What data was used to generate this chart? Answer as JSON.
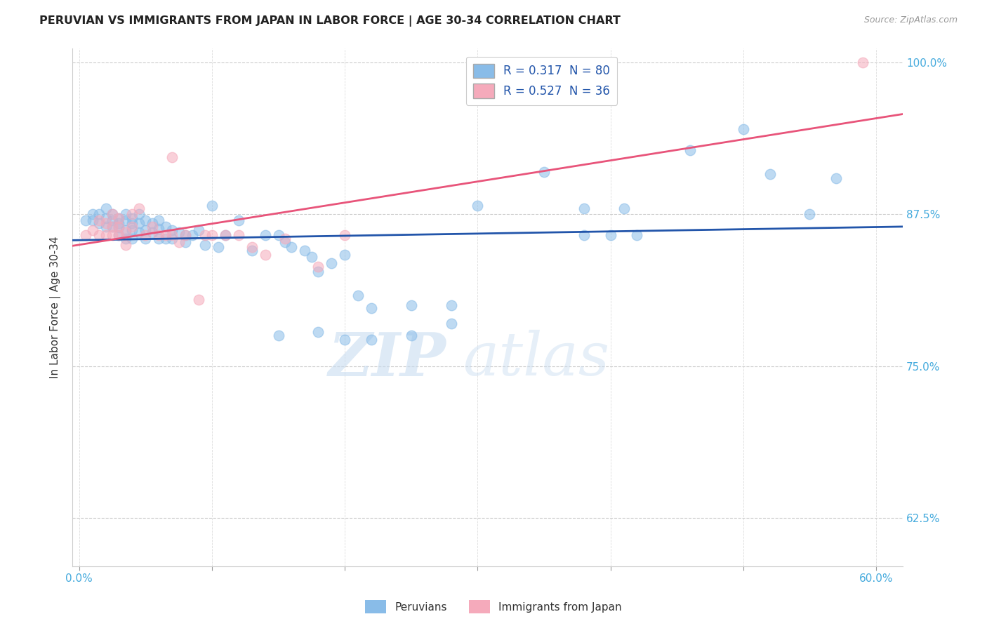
{
  "title": "PERUVIAN VS IMMIGRANTS FROM JAPAN IN LABOR FORCE | AGE 30-34 CORRELATION CHART",
  "source": "Source: ZipAtlas.com",
  "ylabel": "In Labor Force | Age 30-34",
  "legend_bottom": [
    "Peruvians",
    "Immigrants from Japan"
  ],
  "r_blue": 0.317,
  "n_blue": 80,
  "r_pink": 0.527,
  "n_pink": 36,
  "xlim": [
    -0.005,
    0.62
  ],
  "ylim": [
    0.585,
    1.012
  ],
  "blue_color": "#89BCE8",
  "pink_color": "#F5AABB",
  "line_blue": "#2255AA",
  "line_pink": "#E8547A",
  "watermark_zip": "ZIP",
  "watermark_atlas": "atlas",
  "blue_points_x": [
    0.005,
    0.01,
    0.01,
    0.015,
    0.015,
    0.02,
    0.02,
    0.02,
    0.025,
    0.025,
    0.025,
    0.03,
    0.03,
    0.03,
    0.03,
    0.035,
    0.035,
    0.035,
    0.035,
    0.04,
    0.04,
    0.04,
    0.04,
    0.045,
    0.045,
    0.045,
    0.05,
    0.05,
    0.05,
    0.055,
    0.055,
    0.06,
    0.06,
    0.06,
    0.065,
    0.065,
    0.07,
    0.07,
    0.075,
    0.08,
    0.08,
    0.085,
    0.09,
    0.095,
    0.1,
    0.105,
    0.11,
    0.12,
    0.13,
    0.14,
    0.15,
    0.155,
    0.16,
    0.17,
    0.175,
    0.18,
    0.19,
    0.2,
    0.21,
    0.22,
    0.25,
    0.28,
    0.3,
    0.35,
    0.38,
    0.4,
    0.42,
    0.46,
    0.5,
    0.52,
    0.55,
    0.57,
    0.38,
    0.41,
    0.15,
    0.18,
    0.2,
    0.22,
    0.25,
    0.28
  ],
  "blue_points_y": [
    0.87,
    0.875,
    0.87,
    0.875,
    0.868,
    0.88,
    0.872,
    0.865,
    0.875,
    0.87,
    0.865,
    0.872,
    0.868,
    0.864,
    0.858,
    0.875,
    0.87,
    0.862,
    0.855,
    0.872,
    0.868,
    0.862,
    0.855,
    0.875,
    0.868,
    0.86,
    0.87,
    0.862,
    0.855,
    0.868,
    0.86,
    0.87,
    0.863,
    0.855,
    0.865,
    0.855,
    0.862,
    0.855,
    0.86,
    0.858,
    0.852,
    0.858,
    0.862,
    0.85,
    0.882,
    0.848,
    0.858,
    0.87,
    0.845,
    0.858,
    0.858,
    0.852,
    0.848,
    0.845,
    0.84,
    0.828,
    0.835,
    0.842,
    0.808,
    0.798,
    0.8,
    0.8,
    0.882,
    0.91,
    0.858,
    0.858,
    0.858,
    0.928,
    0.945,
    0.908,
    0.875,
    0.905,
    0.88,
    0.88,
    0.775,
    0.778,
    0.772,
    0.772,
    0.775,
    0.785
  ],
  "pink_points_x": [
    0.005,
    0.01,
    0.015,
    0.015,
    0.02,
    0.02,
    0.025,
    0.025,
    0.025,
    0.03,
    0.03,
    0.03,
    0.035,
    0.035,
    0.04,
    0.04,
    0.045,
    0.05,
    0.055,
    0.06,
    0.065,
    0.07,
    0.075,
    0.08,
    0.09,
    0.095,
    0.1,
    0.11,
    0.12,
    0.13,
    0.14,
    0.155,
    0.18,
    0.2,
    0.59,
    0.07
  ],
  "pink_points_y": [
    0.858,
    0.862,
    0.858,
    0.87,
    0.858,
    0.868,
    0.858,
    0.865,
    0.875,
    0.858,
    0.865,
    0.872,
    0.85,
    0.86,
    0.865,
    0.875,
    0.88,
    0.858,
    0.865,
    0.858,
    0.858,
    0.858,
    0.852,
    0.858,
    0.805,
    0.858,
    0.858,
    0.858,
    0.858,
    0.848,
    0.842,
    0.855,
    0.832,
    0.858,
    1.0,
    0.922
  ]
}
